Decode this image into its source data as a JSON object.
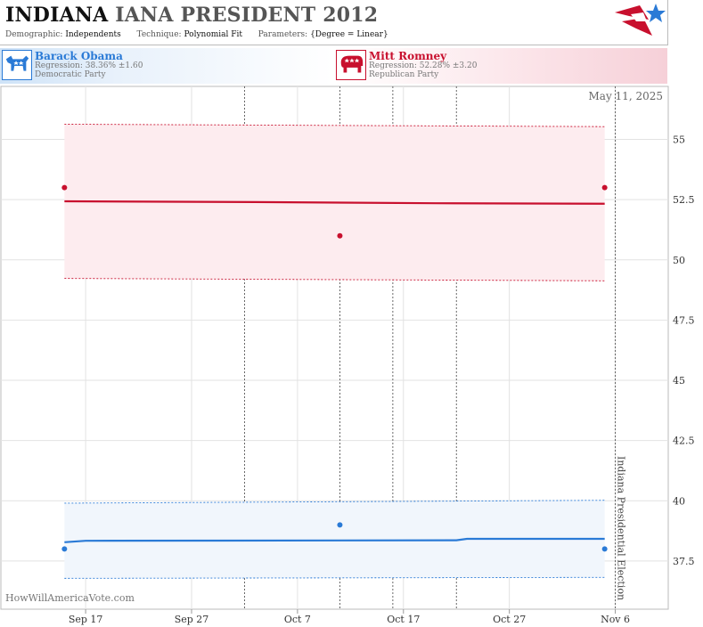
{
  "header": {
    "title_state": "INDIANA",
    "title_race": "IANA PRESIDENT 2012",
    "demographic_label": "Demographic:",
    "demographic_value": "Independents",
    "technique_label": "Technique:",
    "technique_value": "Polynomial Fit",
    "parameters_label": "Parameters:",
    "parameters_value": "{Degree = Linear}"
  },
  "candidates": [
    {
      "name": "Barack Obama",
      "regression": "Regression: 38.36% ±1.60",
      "party": "Democratic Party",
      "color": "#2a7ad6",
      "icon": "donkey-icon"
    },
    {
      "name": "Mitt Romney",
      "regression": "Regression: 52.28% ±3.20",
      "party": "Republican Party",
      "color": "#c8102e",
      "icon": "elephant-icon"
    }
  ],
  "chart_data": {
    "type": "line",
    "date_label": "May 11, 2025",
    "watermark": "HowWillAmericaVote.com",
    "election_label": "Indiana Presidential Election",
    "election_date": "2012-11-06",
    "x_ticks": [
      "Sep 17",
      "Sep 27",
      "Oct 7",
      "Oct 17",
      "Oct 27",
      "Nov 6"
    ],
    "x_tick_dates": [
      "2012-09-17",
      "2012-09-27",
      "2012-10-07",
      "2012-10-17",
      "2012-10-27",
      "2012-11-06"
    ],
    "x_range": [
      "2012-09-09",
      "2012-11-11"
    ],
    "y_ticks": [
      "37.5",
      "40",
      "42.5",
      "45",
      "47.5",
      "50",
      "52.5",
      "55"
    ],
    "y_range": [
      35.5,
      57.2
    ],
    "poll_dates": [
      "2012-10-11",
      "2012-10-22"
    ],
    "series": [
      {
        "name": "Mitt Romney",
        "color": "#c8102e",
        "band_fill": "#fdecef",
        "fit": [
          [
            "2012-09-15",
            52.43
          ],
          [
            "2012-10-03",
            52.4
          ],
          [
            "2012-10-20",
            52.35
          ],
          [
            "2012-11-05",
            52.33
          ]
        ],
        "upper": [
          [
            "2012-09-15",
            55.63
          ],
          [
            "2012-11-05",
            55.53
          ]
        ],
        "lower": [
          [
            "2012-09-15",
            49.23
          ],
          [
            "2012-11-05",
            49.13
          ]
        ],
        "points": [
          [
            "2012-09-15",
            53
          ],
          [
            "2012-10-11",
            51
          ],
          [
            "2012-11-05",
            53
          ]
        ]
      },
      {
        "name": "Barack Obama",
        "color": "#2a7ad6",
        "band_fill": "#f1f6fc",
        "fit": [
          [
            "2012-09-15",
            38.28
          ],
          [
            "2012-09-17",
            38.34
          ],
          [
            "2012-10-22",
            38.36
          ],
          [
            "2012-10-23",
            38.42
          ],
          [
            "2012-11-05",
            38.42
          ]
        ],
        "upper": [
          [
            "2012-09-15",
            39.9
          ],
          [
            "2012-11-05",
            40.02
          ]
        ],
        "lower": [
          [
            "2012-09-15",
            36.78
          ],
          [
            "2012-11-05",
            36.82
          ]
        ],
        "points": [
          [
            "2012-09-15",
            38
          ],
          [
            "2012-10-11",
            39
          ],
          [
            "2012-11-05",
            38
          ]
        ]
      }
    ],
    "grid": true
  }
}
